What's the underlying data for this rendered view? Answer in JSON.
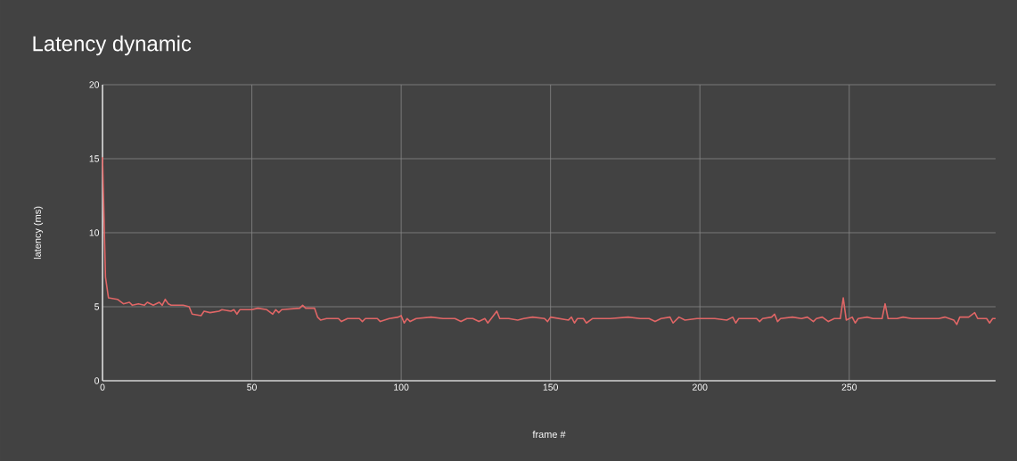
{
  "chart_data": {
    "type": "line",
    "title": "Latency dynamic",
    "xlabel": "frame #",
    "ylabel": "latency (ms)",
    "xlim": [
      0,
      299
    ],
    "ylim": [
      0,
      20
    ],
    "xticks": [
      0,
      50,
      100,
      150,
      200,
      250
    ],
    "yticks": [
      0,
      5,
      10,
      15,
      20
    ],
    "grid": true,
    "marker": "none",
    "line_style": "solid",
    "series": [
      {
        "color": "#e06666",
        "x": [
          0,
          1,
          2,
          5,
          7,
          9,
          10,
          12,
          14,
          15,
          17,
          19,
          20,
          21,
          22,
          23,
          25,
          27,
          29,
          30,
          33,
          34,
          36,
          39,
          40,
          43,
          44,
          45,
          46,
          50,
          52,
          55,
          57,
          58,
          59,
          60,
          66,
          67,
          68,
          71,
          72,
          73,
          75,
          79,
          80,
          82,
          86,
          87,
          88,
          92,
          93,
          96,
          99,
          100,
          101,
          102,
          103,
          105,
          110,
          114,
          118,
          120,
          122,
          124,
          126,
          128,
          129,
          132,
          133,
          136,
          139,
          141,
          144,
          148,
          149,
          150,
          153,
          156,
          157,
          158,
          159,
          161,
          162,
          164,
          168,
          170,
          176,
          180,
          183,
          185,
          187,
          190,
          191,
          193,
          195,
          199,
          203,
          205,
          209,
          211,
          212,
          213,
          216,
          219,
          220,
          221,
          224,
          225,
          226,
          227,
          231,
          234,
          236,
          238,
          239,
          241,
          243,
          245,
          247,
          248,
          249,
          251,
          252,
          253,
          256,
          258,
          260,
          261,
          262,
          263,
          266,
          268,
          271,
          276,
          280,
          282,
          285,
          286,
          287,
          290,
          292,
          293,
          296,
          297,
          298,
          299
        ],
        "values": [
          15.1,
          7.0,
          5.6,
          5.5,
          5.2,
          5.3,
          5.1,
          5.2,
          5.1,
          5.3,
          5.1,
          5.3,
          5.1,
          5.5,
          5.2,
          5.1,
          5.1,
          5.1,
          5.0,
          4.5,
          4.4,
          4.7,
          4.6,
          4.7,
          4.8,
          4.7,
          4.8,
          4.5,
          4.8,
          4.8,
          4.9,
          4.8,
          4.5,
          4.8,
          4.6,
          4.8,
          4.9,
          5.1,
          4.9,
          4.9,
          4.3,
          4.1,
          4.2,
          4.2,
          4.0,
          4.2,
          4.2,
          4.0,
          4.2,
          4.2,
          4.0,
          4.2,
          4.3,
          4.4,
          3.9,
          4.2,
          4.0,
          4.2,
          4.3,
          4.2,
          4.2,
          4.0,
          4.2,
          4.2,
          4.0,
          4.2,
          3.9,
          4.7,
          4.2,
          4.2,
          4.1,
          4.2,
          4.3,
          4.2,
          4.0,
          4.3,
          4.2,
          4.1,
          4.3,
          3.9,
          4.2,
          4.2,
          3.9,
          4.2,
          4.2,
          4.2,
          4.3,
          4.2,
          4.2,
          4.0,
          4.2,
          4.3,
          3.9,
          4.3,
          4.1,
          4.2,
          4.2,
          4.2,
          4.1,
          4.3,
          3.9,
          4.2,
          4.2,
          4.2,
          4.0,
          4.2,
          4.3,
          4.5,
          4.0,
          4.2,
          4.3,
          4.2,
          4.3,
          4.0,
          4.2,
          4.3,
          4.0,
          4.2,
          4.2,
          5.6,
          4.1,
          4.3,
          3.9,
          4.2,
          4.3,
          4.2,
          4.2,
          4.2,
          5.2,
          4.2,
          4.2,
          4.3,
          4.2,
          4.2,
          4.2,
          4.3,
          4.1,
          3.8,
          4.3,
          4.3,
          4.6,
          4.2,
          4.2,
          3.9,
          4.2,
          4.2
        ]
      }
    ]
  }
}
